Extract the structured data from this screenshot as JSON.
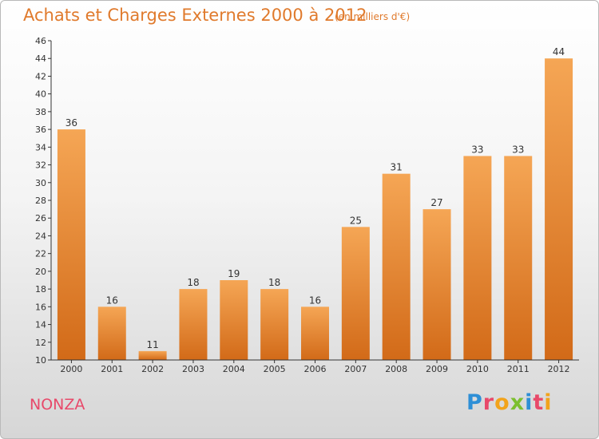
{
  "title": "Achats et Charges Externes 2000 à 2012",
  "unit_note": "(en milliers d'€)",
  "commune": "NONZA",
  "logo": {
    "text": "Proxiti",
    "letter_colors": [
      "#2e8fd6",
      "#e8496a",
      "#f2a31b",
      "#7cbf2f",
      "#2e8fd6",
      "#e8496a",
      "#f2a31b"
    ]
  },
  "colors": {
    "bar_top": "#f5a655",
    "bar_bottom": "#d26a18",
    "text": "#e07a2c",
    "axis": "#333333"
  },
  "chart_data": {
    "type": "bar",
    "categories": [
      "2000",
      "2001",
      "2002",
      "2003",
      "2004",
      "2005",
      "2006",
      "2007",
      "2008",
      "2009",
      "2010",
      "2011",
      "2012"
    ],
    "values": [
      36,
      16,
      11,
      18,
      19,
      18,
      16,
      25,
      31,
      27,
      33,
      33,
      44
    ],
    "ylim": [
      10,
      46
    ],
    "yticks": [
      10,
      12,
      14,
      16,
      18,
      20,
      22,
      24,
      26,
      28,
      30,
      32,
      34,
      36,
      38,
      40,
      42,
      44,
      46
    ],
    "xlabel": "",
    "ylabel": "",
    "grid": false,
    "data_labels": true
  }
}
